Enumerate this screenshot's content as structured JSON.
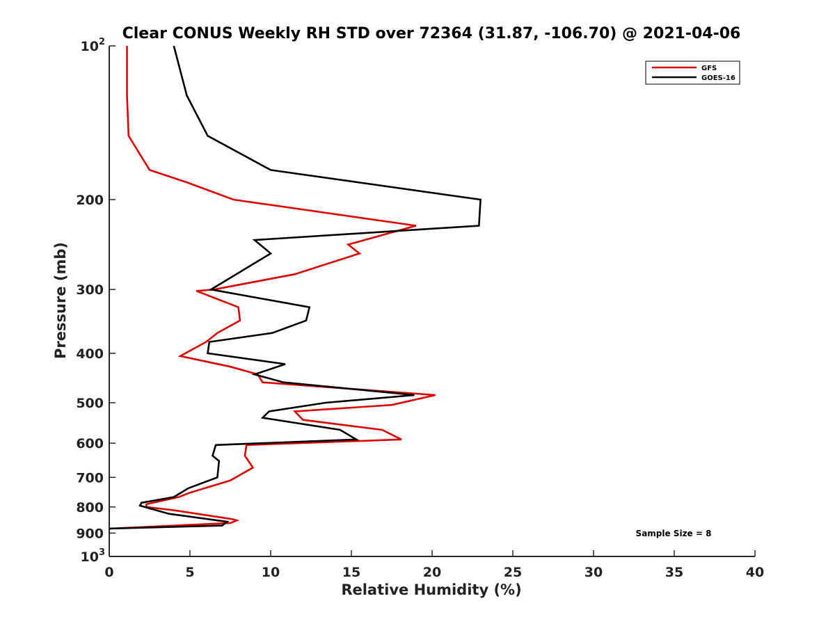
{
  "chart_data": {
    "type": "line",
    "title": "Clear CONUS Weekly RH STD over 72364 (31.87, -106.70) @ 2021-04-06",
    "xlabel": "Relative Humidity (%)",
    "ylabel": "Pressure (mb)",
    "xlim": [
      0,
      40
    ],
    "ylim": [
      100,
      1000
    ],
    "yscale": "log",
    "y_reversed": true,
    "x_ticks": [
      0,
      5,
      10,
      15,
      20,
      25,
      30,
      35,
      40
    ],
    "y_ticks": [
      {
        "value": 100,
        "label": "10",
        "sup": "2"
      },
      {
        "value": 200,
        "label": "200"
      },
      {
        "value": 300,
        "label": "300"
      },
      {
        "value": 400,
        "label": "400"
      },
      {
        "value": 500,
        "label": "500"
      },
      {
        "value": 600,
        "label": "600"
      },
      {
        "value": 700,
        "label": "700"
      },
      {
        "value": 800,
        "label": "800"
      },
      {
        "value": 900,
        "label": "900"
      },
      {
        "value": 1000,
        "label": "10",
        "sup": "3"
      }
    ],
    "grid": false,
    "legend_position": "top-right",
    "series": [
      {
        "name": "GFS",
        "color": "#e00000",
        "points": [
          [
            1.1,
            100
          ],
          [
            1.1,
            125
          ],
          [
            1.2,
            150
          ],
          [
            2.5,
            175
          ],
          [
            4.8,
            185
          ],
          [
            7.7,
            200
          ],
          [
            19.0,
            225
          ],
          [
            14.8,
            245
          ],
          [
            15.5,
            255
          ],
          [
            11.5,
            280
          ],
          [
            6.5,
            300
          ],
          [
            5.4,
            302
          ],
          [
            8.0,
            325
          ],
          [
            8.1,
            345
          ],
          [
            6.7,
            365
          ],
          [
            6.0,
            380
          ],
          [
            4.4,
            405
          ],
          [
            7.5,
            425
          ],
          [
            9.2,
            440
          ],
          [
            9.5,
            456
          ],
          [
            20.2,
            483
          ],
          [
            17.5,
            505
          ],
          [
            11.5,
            520
          ],
          [
            12.0,
            540
          ],
          [
            16.9,
            565
          ],
          [
            18.1,
            590
          ],
          [
            8.5,
            605
          ],
          [
            8.4,
            635
          ],
          [
            8.9,
            670
          ],
          [
            7.5,
            710
          ],
          [
            5.0,
            750
          ],
          [
            4.3,
            765
          ],
          [
            2.3,
            790
          ],
          [
            2.3,
            800
          ],
          [
            4.0,
            812
          ],
          [
            7.6,
            845
          ],
          [
            7.9,
            850
          ],
          [
            7.5,
            860
          ],
          [
            0.0,
            882
          ]
        ]
      },
      {
        "name": "GOES-16",
        "color": "#000000",
        "points": [
          [
            4.0,
            100
          ],
          [
            4.8,
            125
          ],
          [
            6.1,
            150
          ],
          [
            10.0,
            175
          ],
          [
            23.0,
            200
          ],
          [
            22.9,
            225
          ],
          [
            9.0,
            240
          ],
          [
            10.0,
            255
          ],
          [
            6.3,
            300
          ],
          [
            12.4,
            325
          ],
          [
            12.2,
            345
          ],
          [
            10.1,
            365
          ],
          [
            6.2,
            380
          ],
          [
            6.1,
            400
          ],
          [
            10.9,
            420
          ],
          [
            9.0,
            440
          ],
          [
            10.8,
            456
          ],
          [
            18.9,
            483
          ],
          [
            13.4,
            500
          ],
          [
            9.9,
            520
          ],
          [
            9.5,
            535
          ],
          [
            14.3,
            565
          ],
          [
            15.3,
            590
          ],
          [
            6.6,
            605
          ],
          [
            6.4,
            635
          ],
          [
            6.8,
            650
          ],
          [
            6.7,
            700
          ],
          [
            4.9,
            735
          ],
          [
            4.0,
            765
          ],
          [
            2.0,
            785
          ],
          [
            1.9,
            795
          ],
          [
            3.7,
            825
          ],
          [
            6.7,
            850
          ],
          [
            7.3,
            855
          ],
          [
            7.0,
            870
          ],
          [
            0.0,
            882
          ]
        ]
      }
    ],
    "annotations": [
      {
        "text": "Sample Size = 8"
      }
    ]
  }
}
